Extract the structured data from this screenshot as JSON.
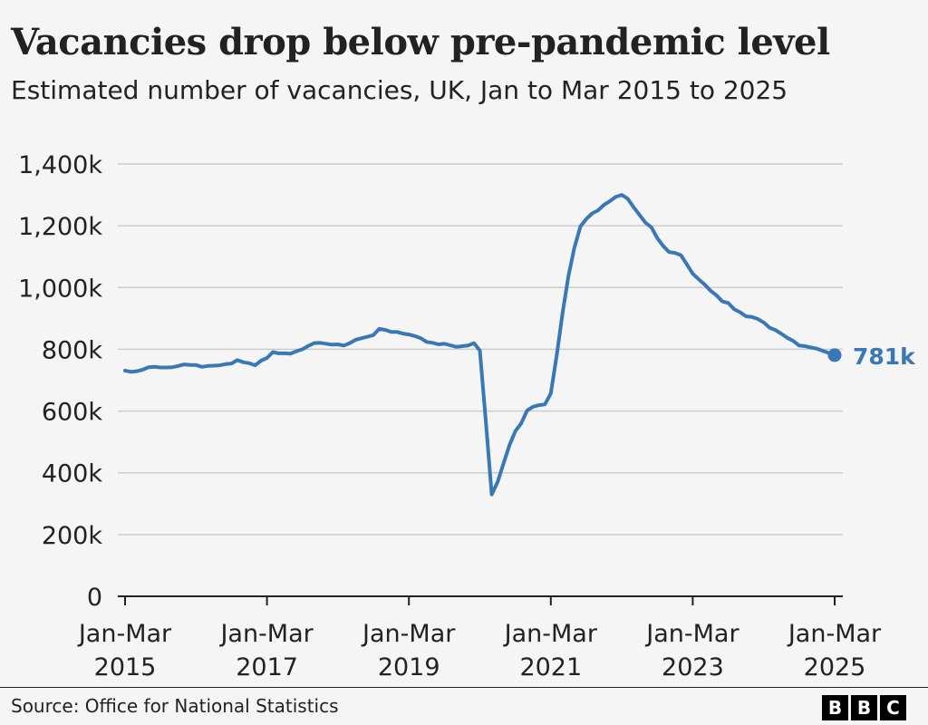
{
  "header": {
    "title": "Vacancies drop below pre-pandemic level",
    "subtitle": "Estimated number of vacancies, UK, Jan to Mar 2015 to 2025"
  },
  "footer": {
    "source": "Source: Office for National Statistics",
    "logo_letters": [
      "B",
      "B",
      "C"
    ]
  },
  "colors": {
    "line": "#3a78b5",
    "grid": "#cccccc",
    "axis": "#222222",
    "background": "#f5f5f5"
  },
  "chart_data": {
    "type": "line",
    "title": "Vacancies drop below pre-pandemic level",
    "subtitle": "Estimated number of vacancies, UK, Jan to Mar 2015 to 2025",
    "xlabel": "",
    "ylabel": "",
    "x_ticks": [
      {
        "year": 2015,
        "line1": "Jan-Mar",
        "line2": "2015"
      },
      {
        "year": 2017,
        "line1": "Jan-Mar",
        "line2": "2017"
      },
      {
        "year": 2019,
        "line1": "Jan-Mar",
        "line2": "2019"
      },
      {
        "year": 2021,
        "line1": "Jan-Mar",
        "line2": "2021"
      },
      {
        "year": 2023,
        "line1": "Jan-Mar",
        "line2": "2023"
      },
      {
        "year": 2025,
        "line1": "Jan-Mar",
        "line2": "2025"
      }
    ],
    "y_ticks": [
      {
        "value": 0,
        "label": "0"
      },
      {
        "value": 200000,
        "label": "200k"
      },
      {
        "value": 400000,
        "label": "400k"
      },
      {
        "value": 600000,
        "label": "600k"
      },
      {
        "value": 800000,
        "label": "800k"
      },
      {
        "value": 1000000,
        "label": "1,000k"
      },
      {
        "value": 1200000,
        "label": "1,200k"
      },
      {
        "value": 1400000,
        "label": "1,400k"
      }
    ],
    "ylim": [
      0,
      1400000
    ],
    "xlim": [
      2015,
      2025
    ],
    "grid": true,
    "end_label": "781k",
    "series": [
      {
        "points": [
          [
            2015.0,
            731000
          ],
          [
            2015.083,
            727000
          ],
          [
            2015.167,
            729000
          ],
          [
            2015.25,
            734000
          ],
          [
            2015.333,
            742000
          ],
          [
            2015.417,
            743000
          ],
          [
            2015.5,
            741000
          ],
          [
            2015.583,
            741000
          ],
          [
            2015.667,
            742000
          ],
          [
            2015.75,
            746000
          ],
          [
            2015.833,
            751000
          ],
          [
            2015.917,
            749000
          ],
          [
            2016.0,
            749000
          ],
          [
            2016.083,
            743000
          ],
          [
            2016.167,
            746000
          ],
          [
            2016.25,
            747000
          ],
          [
            2016.333,
            748000
          ],
          [
            2016.417,
            752000
          ],
          [
            2016.5,
            754000
          ],
          [
            2016.583,
            765000
          ],
          [
            2016.667,
            758000
          ],
          [
            2016.75,
            755000
          ],
          [
            2016.833,
            748000
          ],
          [
            2016.917,
            763000
          ],
          [
            2017.0,
            772000
          ],
          [
            2017.083,
            791000
          ],
          [
            2017.167,
            787000
          ],
          [
            2017.25,
            787000
          ],
          [
            2017.333,
            786000
          ],
          [
            2017.417,
            794000
          ],
          [
            2017.5,
            800000
          ],
          [
            2017.583,
            811000
          ],
          [
            2017.667,
            820000
          ],
          [
            2017.75,
            821000
          ],
          [
            2017.833,
            818000
          ],
          [
            2017.917,
            815000
          ],
          [
            2018.0,
            816000
          ],
          [
            2018.083,
            812000
          ],
          [
            2018.167,
            820000
          ],
          [
            2018.25,
            831000
          ],
          [
            2018.333,
            836000
          ],
          [
            2018.417,
            841000
          ],
          [
            2018.5,
            846000
          ],
          [
            2018.583,
            866000
          ],
          [
            2018.667,
            863000
          ],
          [
            2018.75,
            856000
          ],
          [
            2018.833,
            856000
          ],
          [
            2018.917,
            851000
          ],
          [
            2019.0,
            848000
          ],
          [
            2019.083,
            843000
          ],
          [
            2019.167,
            836000
          ],
          [
            2019.25,
            824000
          ],
          [
            2019.333,
            821000
          ],
          [
            2019.417,
            816000
          ],
          [
            2019.5,
            818000
          ],
          [
            2019.583,
            813000
          ],
          [
            2019.667,
            808000
          ],
          [
            2019.75,
            810000
          ],
          [
            2019.833,
            812000
          ],
          [
            2019.917,
            820000
          ],
          [
            2020.0,
            796000
          ],
          [
            2020.083,
            570000
          ],
          [
            2020.167,
            330000
          ],
          [
            2020.25,
            370000
          ],
          [
            2020.333,
            430000
          ],
          [
            2020.417,
            490000
          ],
          [
            2020.5,
            535000
          ],
          [
            2020.583,
            560000
          ],
          [
            2020.667,
            602000
          ],
          [
            2020.75,
            614000
          ],
          [
            2020.833,
            619000
          ],
          [
            2020.917,
            622000
          ],
          [
            2021.0,
            657000
          ],
          [
            2021.083,
            780000
          ],
          [
            2021.167,
            920000
          ],
          [
            2021.25,
            1040000
          ],
          [
            2021.333,
            1130000
          ],
          [
            2021.417,
            1198000
          ],
          [
            2021.5,
            1222000
          ],
          [
            2021.583,
            1240000
          ],
          [
            2021.667,
            1250000
          ],
          [
            2021.75,
            1268000
          ],
          [
            2021.833,
            1280000
          ],
          [
            2021.917,
            1294000
          ],
          [
            2022.0,
            1300000
          ],
          [
            2022.083,
            1288000
          ],
          [
            2022.167,
            1260000
          ],
          [
            2022.25,
            1235000
          ],
          [
            2022.333,
            1210000
          ],
          [
            2022.417,
            1195000
          ],
          [
            2022.5,
            1160000
          ],
          [
            2022.583,
            1135000
          ],
          [
            2022.667,
            1115000
          ],
          [
            2022.75,
            1112000
          ],
          [
            2022.833,
            1105000
          ],
          [
            2022.917,
            1075000
          ],
          [
            2023.0,
            1045000
          ],
          [
            2023.083,
            1027000
          ],
          [
            2023.167,
            1010000
          ],
          [
            2023.25,
            990000
          ],
          [
            2023.333,
            975000
          ],
          [
            2023.417,
            955000
          ],
          [
            2023.5,
            950000
          ],
          [
            2023.583,
            930000
          ],
          [
            2023.667,
            920000
          ],
          [
            2023.75,
            907000
          ],
          [
            2023.833,
            905000
          ],
          [
            2023.917,
            898000
          ],
          [
            2024.0,
            887000
          ],
          [
            2024.083,
            870000
          ],
          [
            2024.167,
            862000
          ],
          [
            2024.25,
            850000
          ],
          [
            2024.333,
            837000
          ],
          [
            2024.417,
            827000
          ],
          [
            2024.5,
            812000
          ],
          [
            2024.583,
            810000
          ],
          [
            2024.667,
            806000
          ],
          [
            2024.75,
            802000
          ],
          [
            2024.833,
            795000
          ],
          [
            2024.917,
            788000
          ],
          [
            2025.0,
            781000
          ]
        ]
      }
    ]
  }
}
